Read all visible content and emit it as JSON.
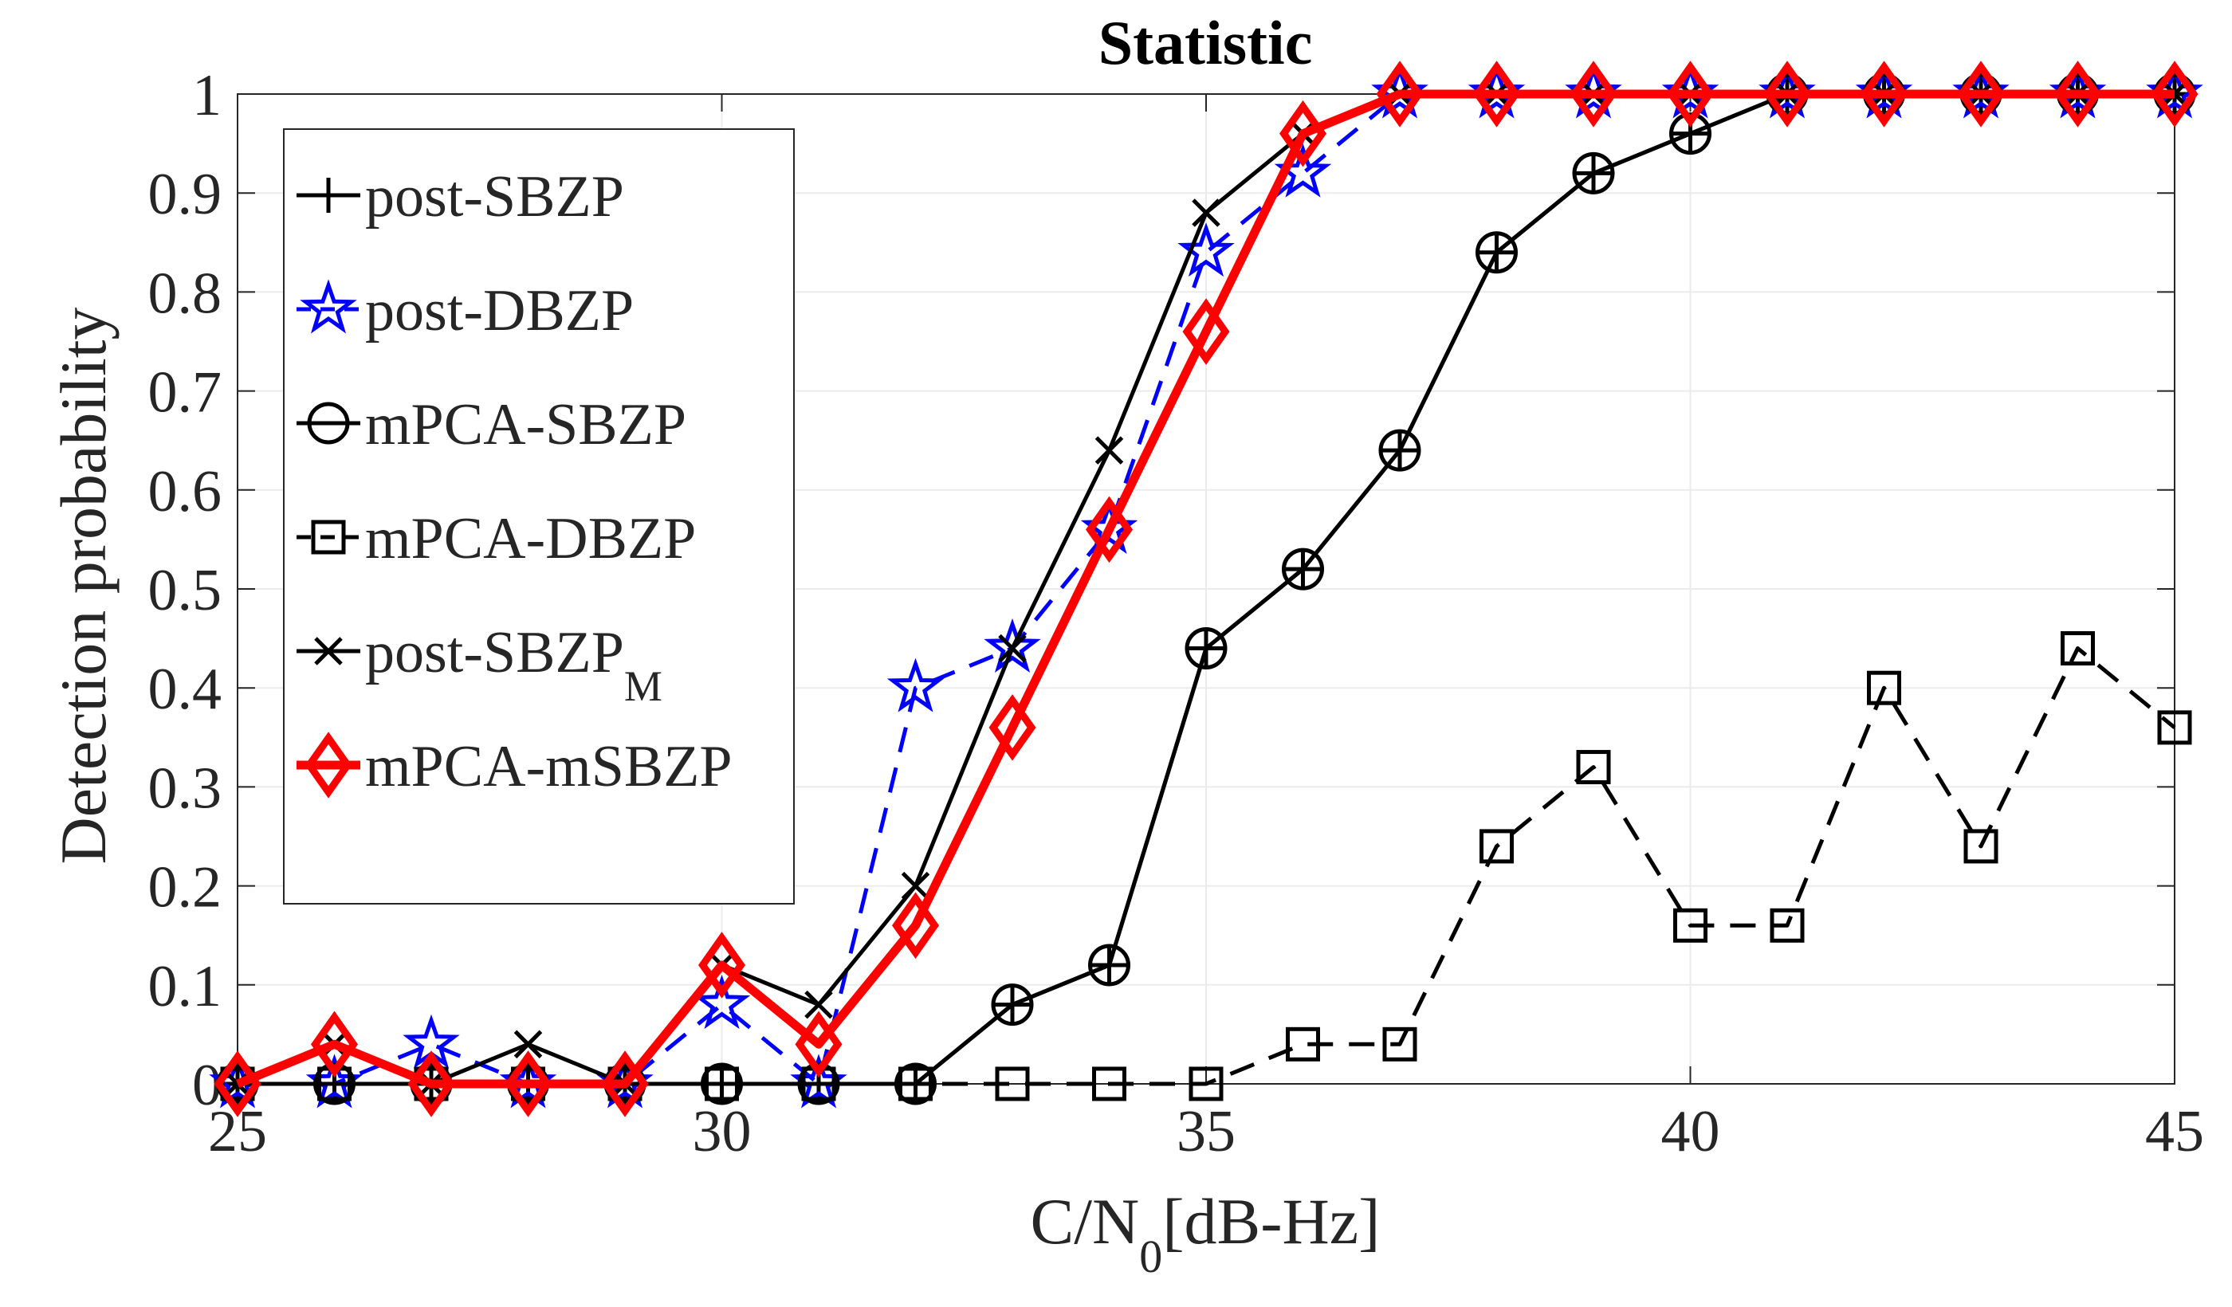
{
  "chart_data": {
    "type": "line",
    "title": "Statistic",
    "xlabel": {
      "main": "C/N",
      "sub": "0",
      "rest": "[dB-Hz]"
    },
    "ylabel": "Detection probability",
    "xlim": [
      25,
      45
    ],
    "ylim": [
      0,
      1
    ],
    "xticks": [
      25,
      30,
      35,
      40,
      45
    ],
    "yticks": [
      0,
      0.1,
      0.2,
      0.3,
      0.4,
      0.5,
      0.6,
      0.7,
      0.8,
      0.9,
      1
    ],
    "ytick_labels": [
      "0",
      "0.1",
      "0.2",
      "0.3",
      "0.4",
      "0.5",
      "0.6",
      "0.7",
      "0.8",
      "0.9",
      "1"
    ],
    "grid": true,
    "legend_position": "top-left",
    "x": [
      25,
      26,
      27,
      28,
      29,
      30,
      31,
      32,
      33,
      34,
      35,
      36,
      37,
      38,
      39,
      40,
      41,
      42,
      43,
      44,
      45
    ],
    "series": [
      {
        "name": "post-SBZP",
        "label_main": "post-SBZP",
        "label_sub": "",
        "color": "#000000",
        "dash": "solid",
        "marker": "plus",
        "width": 5,
        "values": [
          0,
          0,
          0,
          0,
          0,
          0,
          0,
          0,
          0.08,
          0.12,
          0.44,
          0.52,
          0.64,
          0.84,
          0.92,
          0.96,
          1,
          1,
          1,
          1,
          1
        ]
      },
      {
        "name": "post-DBZP",
        "label_main": "post-DBZP",
        "label_sub": "",
        "color": "#0000ff",
        "dash": "dashed",
        "marker": "star",
        "width": 5,
        "values": [
          0,
          0,
          0.04,
          0,
          0,
          0.08,
          0,
          0.4,
          0.44,
          0.56,
          0.84,
          0.92,
          1,
          1,
          1,
          1,
          1,
          1,
          1,
          1,
          1
        ]
      },
      {
        "name": "mPCA-SBZP",
        "label_main": "mPCA-SBZP",
        "label_sub": "",
        "color": "#000000",
        "dash": "solid",
        "marker": "circle",
        "width": 5,
        "values": [
          0,
          0,
          0,
          0,
          0,
          0,
          0,
          0,
          0.08,
          0.12,
          0.44,
          0.52,
          0.64,
          0.84,
          0.92,
          0.96,
          1,
          1,
          1,
          1,
          1
        ]
      },
      {
        "name": "mPCA-DBZP",
        "label_main": "mPCA-DBZP",
        "label_sub": "",
        "color": "#000000",
        "dash": "dashed",
        "marker": "square",
        "width": 5,
        "values": [
          0,
          0,
          0,
          0,
          0,
          0,
          0,
          0,
          0,
          0,
          0,
          0.04,
          0.04,
          0.24,
          0.32,
          0.16,
          0.16,
          0.4,
          0.24,
          0.44,
          0.36
        ]
      },
      {
        "name": "post-SBZP_M",
        "label_main": "post-SBZP",
        "label_sub": "M",
        "color": "#000000",
        "dash": "solid",
        "marker": "x",
        "width": 5,
        "values": [
          0,
          0.04,
          0,
          0.04,
          0,
          0.12,
          0.08,
          0.2,
          0.44,
          0.64,
          0.88,
          0.96,
          1,
          1,
          1,
          1,
          1,
          1,
          1,
          1,
          1
        ]
      },
      {
        "name": "mPCA-mSBZP",
        "label_main": "mPCA-mSBZP",
        "label_sub": "",
        "color": "#ff0000",
        "dash": "solid",
        "marker": "diamond",
        "width": 11,
        "values": [
          0,
          0.04,
          0,
          0,
          0,
          0.12,
          0.04,
          0.16,
          0.36,
          0.56,
          0.76,
          0.96,
          1,
          1,
          1,
          1,
          1,
          1,
          1,
          1,
          1
        ]
      }
    ]
  }
}
